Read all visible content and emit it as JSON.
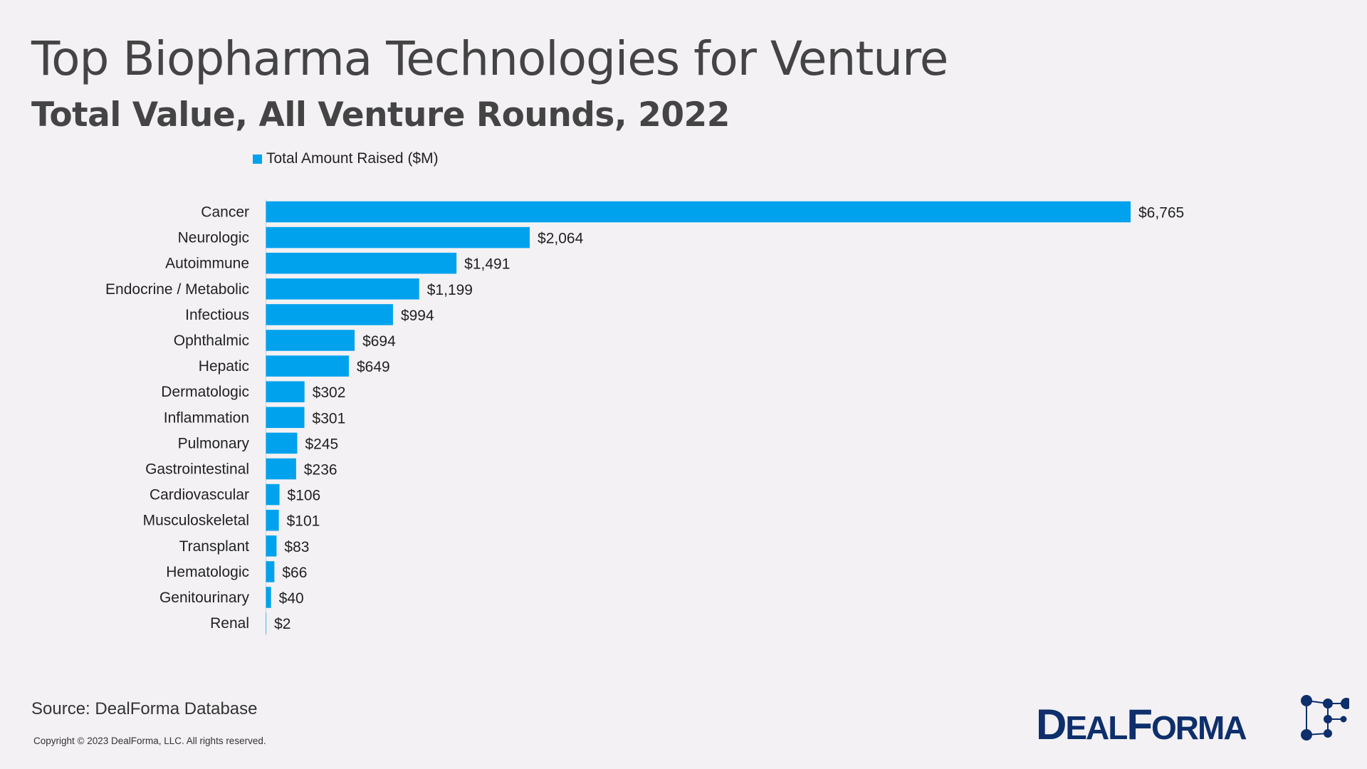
{
  "chart_data": {
    "type": "bar",
    "orientation": "horizontal",
    "title": "Top Biopharma Technologies for Venture",
    "subtitle": "Total Value, All Venture Rounds, 2022",
    "categories": [
      "Cancer",
      "Neurologic",
      "Autoimmune",
      "Endocrine / Metabolic",
      "Infectious",
      "Ophthalmic",
      "Hepatic",
      "Dermatologic",
      "Inflammation",
      "Pulmonary",
      "Gastrointestinal",
      "Cardiovascular",
      "Musculoskeletal",
      "Transplant",
      "Hematologic",
      "Genitourinary",
      "Renal"
    ],
    "series": [
      {
        "name": "Total Amount Raised ($M)",
        "values": [
          6765,
          2064,
          1491,
          1199,
          994,
          694,
          649,
          302,
          301,
          245,
          236,
          106,
          101,
          83,
          66,
          40,
          2
        ],
        "color": "#00a2ed"
      }
    ],
    "data_labels": [
      "$6,765",
      "$2,064",
      "$1,491",
      "$1,199",
      "$994",
      "$694",
      "$649",
      "$302",
      "$301",
      "$245",
      "$236",
      "$106",
      "$101",
      "$83",
      "$66",
      "$40",
      "$2"
    ],
    "legend_position": "top",
    "grid": false,
    "xlim": [
      0,
      6765
    ]
  },
  "footer": {
    "source": "Source: DealForma Database",
    "copyright": "Copyright © 2023 DealForma, LLC. All rights reserved."
  },
  "logo": {
    "text": "DEALFORMA",
    "color": "#0e2f6b"
  }
}
